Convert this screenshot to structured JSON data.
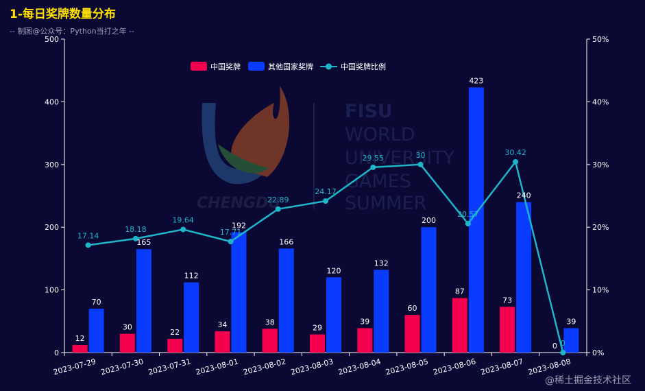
{
  "watermark": "@稀土掘金技术社区",
  "logo": {
    "lines": [
      "FISU",
      "WORLD",
      "UNIVERSITY",
      "GAMES",
      "SUMMER"
    ],
    "city": "CHENGDU"
  },
  "colors": {
    "background": "#0b0833",
    "china": "#f5004f",
    "other": "#0a3cff",
    "ratio": "#1fb6c9",
    "axis": "#ffffff",
    "title": "#ffe100"
  },
  "chart_data": {
    "type": "bar",
    "title": "1-每日奖牌数量分布",
    "subtitle": "-- 制图@公众号：Python当打之年 --",
    "categories": [
      "2023-07-29",
      "2023-07-30",
      "2023-07-31",
      "2023-08-01",
      "2023-08-02",
      "2023-08-03",
      "2023-08-04",
      "2023-08-05",
      "2023-08-06",
      "2023-08-07",
      "2023-08-08"
    ],
    "series": [
      {
        "name": "中国奖牌",
        "type": "bar",
        "axis": "left",
        "values": [
          12,
          30,
          22,
          34,
          38,
          29,
          39,
          60,
          87,
          73,
          0
        ]
      },
      {
        "name": "其他国家奖牌",
        "type": "bar",
        "axis": "left",
        "values": [
          70,
          165,
          112,
          192,
          166,
          120,
          132,
          200,
          423,
          240,
          39
        ]
      },
      {
        "name": "中国奖牌比例",
        "type": "line",
        "axis": "right",
        "values": [
          17.14,
          18.18,
          19.64,
          17.71,
          22.89,
          24.17,
          29.55,
          30,
          20.57,
          30.42,
          0
        ],
        "labels": [
          "17.14",
          "18.18",
          "19.64",
          "17.71",
          "22.89",
          "24.17",
          "29.55",
          "30",
          "20.57",
          "30.42",
          "0"
        ]
      }
    ],
    "y_left": {
      "range": [
        0,
        500
      ],
      "ticks": [
        "0",
        "100",
        "200",
        "300",
        "400",
        "500"
      ]
    },
    "y_right": {
      "range": [
        0,
        50
      ],
      "ticks": [
        "0%",
        "10%",
        "20%",
        "30%",
        "40%",
        "50%"
      ]
    },
    "legend": [
      "中国奖牌",
      "其他国家奖牌",
      "中国奖牌比例"
    ],
    "legend_position": "top-center",
    "grid": false
  }
}
